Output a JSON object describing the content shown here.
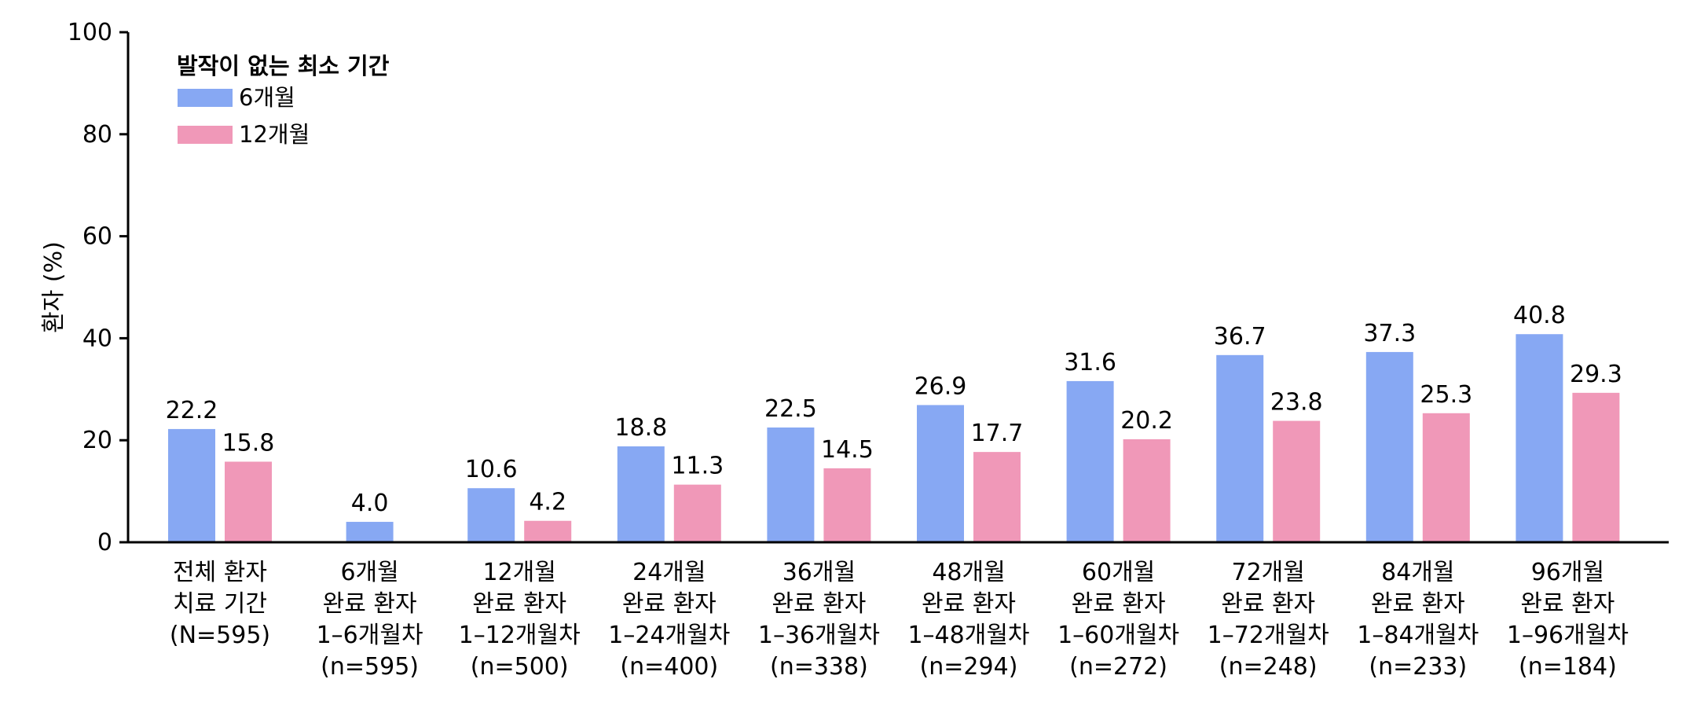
{
  "chart_data": {
    "type": "bar",
    "ylabel": "환자 (%)",
    "ylim": [
      0,
      100
    ],
    "yticks": [
      0,
      20,
      40,
      60,
      80,
      100
    ],
    "grid": false,
    "legend": {
      "placement": "top-left",
      "title": "발작이 없는 최소 기간"
    },
    "categories": [
      [
        "전체 환자",
        "치료 기간",
        "(N=595)"
      ],
      [
        "6개월",
        "완료 환자",
        "1–6개월차",
        "(n=595)"
      ],
      [
        "12개월",
        "완료 환자",
        "1–12개월차",
        "(n=500)"
      ],
      [
        "24개월",
        "완료 환자",
        "1–24개월차",
        "(n=400)"
      ],
      [
        "36개월",
        "완료 환자",
        "1–36개월차",
        "(n=338)"
      ],
      [
        "48개월",
        "완료 환자",
        "1–48개월차",
        "(n=294)"
      ],
      [
        "60개월",
        "완료 환자",
        "1–60개월차",
        "(n=272)"
      ],
      [
        "72개월",
        "완료 환자",
        "1–72개월차",
        "(n=248)"
      ],
      [
        "84개월",
        "완료 환자",
        "1–84개월차",
        "(n=233)"
      ],
      [
        "96개월",
        "완료 환자",
        "1–96개월차",
        "(n=184)"
      ]
    ],
    "series": [
      {
        "name": "6개월",
        "color": "#87a8f3",
        "values": [
          22.2,
          4.0,
          10.6,
          18.8,
          22.5,
          26.9,
          31.6,
          36.7,
          37.3,
          40.8
        ],
        "labels": [
          "22.2",
          "4.0",
          "10.6",
          "18.8",
          "22.5",
          "26.9",
          "31.6",
          "36.7",
          "37.3",
          "40.8"
        ]
      },
      {
        "name": "12개월",
        "color": "#f098b8",
        "values": [
          15.8,
          null,
          4.2,
          11.3,
          14.5,
          17.7,
          20.2,
          23.8,
          25.3,
          29.3
        ],
        "labels": [
          "15.8",
          "",
          "4.2",
          "11.3",
          "14.5",
          "17.7",
          "20.2",
          "23.8",
          "25.3",
          "29.3"
        ]
      }
    ]
  }
}
